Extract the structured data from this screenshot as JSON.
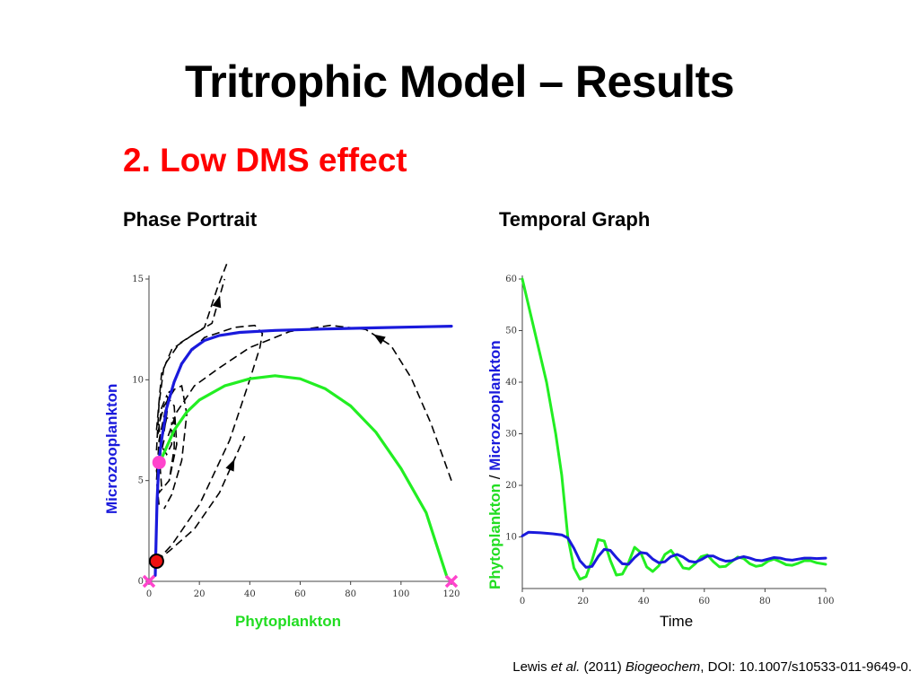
{
  "title": "Tritrophic Model – Results",
  "subtitle": "2. Low DMS effect",
  "panels": {
    "phase_label": "Phase Portrait",
    "temporal_label": "Temporal Graph"
  },
  "citation": {
    "author": "Lewis",
    "etal": "et al.",
    "year": "(2011)",
    "journal": "Biogeochem",
    "doi": ", DOI: 10.1007/s10533-011-9649-0."
  },
  "colors": {
    "microzoo": "#1a1adc",
    "phyto": "#22ee22",
    "trajectory": "#000000",
    "marker_pink": "#ff44cc",
    "marker_red": "#ee1111"
  },
  "chart_data": [
    {
      "type": "line",
      "name": "phase-portrait",
      "xlabel": "Phytoplankton",
      "ylabel": "Microzooplankton",
      "xlim": [
        0,
        120
      ],
      "ylim": [
        0,
        15
      ],
      "xticks": [
        0,
        20,
        40,
        60,
        80,
        100,
        120
      ],
      "yticks": [
        0,
        5,
        10,
        15
      ],
      "series": [
        {
          "role": "microzooplankton-nullcline",
          "color": "#1a1adc",
          "points": [
            [
              2.5,
              0.3
            ],
            [
              2.8,
              2
            ],
            [
              3.2,
              4
            ],
            [
              4,
              6
            ],
            [
              5,
              7
            ],
            [
              7,
              8.6
            ],
            [
              10,
              9.9
            ],
            [
              13,
              10.8
            ],
            [
              17,
              11.5
            ],
            [
              22,
              11.95
            ],
            [
              28,
              12.2
            ],
            [
              36,
              12.35
            ],
            [
              50,
              12.45
            ],
            [
              70,
              12.52
            ],
            [
              90,
              12.58
            ],
            [
              110,
              12.63
            ],
            [
              120,
              12.66
            ]
          ]
        },
        {
          "role": "phytoplankton-nullcline",
          "color": "#22ee22",
          "points": [
            [
              5,
              6.1
            ],
            [
              10,
              7.5
            ],
            [
              15,
              8.4
            ],
            [
              20,
              9.0
            ],
            [
              30,
              9.7
            ],
            [
              40,
              10.05
            ],
            [
              50,
              10.2
            ],
            [
              60,
              10.05
            ],
            [
              70,
              9.55
            ],
            [
              80,
              8.7
            ],
            [
              90,
              7.4
            ],
            [
              100,
              5.6
            ],
            [
              110,
              3.4
            ],
            [
              118,
              0.3
            ]
          ]
        }
      ],
      "trajectories": [
        {
          "points": [
            [
              3,
              1.0
            ],
            [
              8,
              1.5
            ],
            [
              18,
              2.6
            ],
            [
              28,
              4.4
            ],
            [
              38,
              7.2
            ]
          ],
          "arrow_at": 3
        },
        {
          "points": [
            [
              3,
              1.0
            ],
            [
              9,
              1.8
            ],
            [
              20,
              3.8
            ],
            [
              32,
              7.0
            ],
            [
              40,
              10.0
            ],
            [
              44,
              11.6
            ],
            [
              45,
              12.3
            ],
            [
              42,
              12.7
            ],
            [
              34,
              12.6
            ],
            [
              22,
              12.1
            ],
            [
              13,
              10.9
            ],
            [
              8,
              9.1
            ],
            [
              6,
              7.4
            ]
          ],
          "arrow_at": -1
        },
        {
          "points": [
            [
              120,
              5.0
            ],
            [
              112,
              7.8
            ],
            [
              104,
              10.1
            ],
            [
              96,
              11.7
            ],
            [
              86,
              12.5
            ],
            [
              72,
              12.7
            ],
            [
              56,
              12.4
            ],
            [
              40,
              11.6
            ],
            [
              28,
              10.6
            ],
            [
              18,
              9.7
            ],
            [
              11,
              8.4
            ],
            [
              7,
              7.0
            ]
          ],
          "arrow_at": 3
        },
        {
          "points": [
            [
              6,
              7.0
            ],
            [
              3,
              5.5
            ],
            [
              4,
              4.4
            ],
            [
              8,
              5.0
            ],
            [
              11,
              6.8
            ],
            [
              10,
              8.7
            ],
            [
              7,
              9.2
            ],
            [
              5,
              8.6
            ],
            [
              3.5,
              7.2
            ]
          ],
          "arrow_at": -1
        },
        {
          "points": [
            [
              4,
              3.8
            ],
            [
              3,
              5.0
            ],
            [
              4,
              7.0
            ],
            [
              8,
              9.4
            ],
            [
              13,
              9.7
            ],
            [
              15,
              8.3
            ],
            [
              13,
              6.0
            ],
            [
              9,
              4.3
            ],
            [
              6,
              3.6
            ]
          ],
          "arrow_at": -1
        },
        {
          "points": [
            [
              5,
              4.7
            ],
            [
              4,
              6.4
            ],
            [
              7,
              8.1
            ],
            [
              10,
              8.1
            ],
            [
              10,
              6.6
            ],
            [
              8,
              5.0
            ]
          ],
          "arrow_at": -1
        },
        {
          "points": [
            [
              10,
              9.5
            ],
            [
              6,
              8.7
            ],
            [
              4,
              7.8
            ],
            [
              4.5,
              6.8
            ],
            [
              7,
              6.3
            ],
            [
              9,
              6.8
            ],
            [
              9,
              7.9
            ]
          ],
          "arrow_at": -1
        },
        {
          "points": [
            [
              3,
              7.5
            ],
            [
              5,
              10.3
            ],
            [
              9,
              11.5
            ],
            [
              17,
              12.2
            ],
            [
              25,
              12.8
            ],
            [
              30,
              15.0
            ]
          ],
          "arrow_at": 4
        },
        {
          "points": [
            [
              3,
              6.5
            ],
            [
              4,
              8.8
            ],
            [
              6,
              10.7
            ],
            [
              12,
              11.8
            ],
            [
              22,
              12.6
            ],
            [
              27,
              14.5
            ],
            [
              31,
              15.8
            ]
          ],
          "arrow_at": -1
        }
      ],
      "markers": [
        {
          "x": 0,
          "y": 0,
          "shape": "x",
          "color": "#ff44cc"
        },
        {
          "x": 120,
          "y": 0,
          "shape": "x",
          "color": "#ff44cc"
        },
        {
          "x": 4,
          "y": 5.9,
          "shape": "dot",
          "color": "#ff44cc"
        },
        {
          "x": 3,
          "y": 1.0,
          "shape": "dot",
          "color": "#ee1111"
        }
      ]
    },
    {
      "type": "line",
      "name": "temporal-graph",
      "xlabel": "Time",
      "ylabel_parts": [
        "Phytoplankton",
        " / ",
        "Microzooplankton"
      ],
      "xlim": [
        0,
        100
      ],
      "ylim": [
        0,
        60
      ],
      "xticks": [
        0,
        20,
        40,
        60,
        80,
        100
      ],
      "yticks": [
        10,
        20,
        30,
        40,
        50,
        60
      ],
      "series": [
        {
          "role": "phytoplankton",
          "color": "#22ee22",
          "points": [
            [
              0,
              60
            ],
            [
              4,
              50
            ],
            [
              8,
              40
            ],
            [
              11,
              30
            ],
            [
              13,
              22
            ],
            [
              15,
              10
            ],
            [
              17,
              4
            ],
            [
              19,
              1.8
            ],
            [
              21,
              2.3
            ],
            [
              23,
              5.5
            ],
            [
              25,
              9.5
            ],
            [
              27,
              9.2
            ],
            [
              29,
              5.5
            ],
            [
              31,
              2.6
            ],
            [
              33,
              2.8
            ],
            [
              35,
              5
            ],
            [
              37,
              8
            ],
            [
              39,
              7
            ],
            [
              41,
              4.2
            ],
            [
              43,
              3.3
            ],
            [
              45,
              4.4
            ],
            [
              47,
              6.6
            ],
            [
              49,
              7.4
            ],
            [
              51,
              5.8
            ],
            [
              53,
              4.0
            ],
            [
              55,
              3.8
            ],
            [
              57,
              4.8
            ],
            [
              59,
              6.2
            ],
            [
              61,
              6.5
            ],
            [
              63,
              5.2
            ],
            [
              65,
              4.2
            ],
            [
              67,
              4.3
            ],
            [
              69,
              5.2
            ],
            [
              71,
              6.1
            ],
            [
              73,
              5.8
            ],
            [
              75,
              4.8
            ],
            [
              77,
              4.3
            ],
            [
              79,
              4.5
            ],
            [
              81,
              5.3
            ],
            [
              83,
              5.7
            ],
            [
              85,
              5.2
            ],
            [
              87,
              4.6
            ],
            [
              89,
              4.5
            ],
            [
              91,
              4.9
            ],
            [
              93,
              5.4
            ],
            [
              95,
              5.4
            ],
            [
              97,
              5.0
            ],
            [
              100,
              4.7
            ]
          ]
        },
        {
          "role": "microzooplankton",
          "color": "#1a1adc",
          "points": [
            [
              0,
              10.2
            ],
            [
              2,
              10.9
            ],
            [
              6,
              10.8
            ],
            [
              10,
              10.6
            ],
            [
              13,
              10.4
            ],
            [
              15,
              9.8
            ],
            [
              17,
              7.8
            ],
            [
              19,
              5.4
            ],
            [
              21,
              4.1
            ],
            [
              23,
              4.3
            ],
            [
              25,
              6.2
            ],
            [
              27,
              7.6
            ],
            [
              29,
              7.4
            ],
            [
              31,
              6.0
            ],
            [
              33,
              4.8
            ],
            [
              35,
              4.7
            ],
            [
              37,
              6.0
            ],
            [
              39,
              7.0
            ],
            [
              41,
              6.8
            ],
            [
              43,
              5.7
            ],
            [
              45,
              5.0
            ],
            [
              47,
              5.2
            ],
            [
              49,
              6.2
            ],
            [
              51,
              6.6
            ],
            [
              53,
              6.1
            ],
            [
              55,
              5.3
            ],
            [
              57,
              5.1
            ],
            [
              59,
              5.6
            ],
            [
              61,
              6.3
            ],
            [
              63,
              6.3
            ],
            [
              65,
              5.7
            ],
            [
              67,
              5.3
            ],
            [
              69,
              5.4
            ],
            [
              71,
              5.9
            ],
            [
              73,
              6.2
            ],
            [
              75,
              5.9
            ],
            [
              77,
              5.5
            ],
            [
              79,
              5.4
            ],
            [
              81,
              5.7
            ],
            [
              83,
              6.0
            ],
            [
              85,
              5.9
            ],
            [
              87,
              5.6
            ],
            [
              89,
              5.5
            ],
            [
              91,
              5.7
            ],
            [
              93,
              5.9
            ],
            [
              95,
              5.9
            ],
            [
              97,
              5.8
            ],
            [
              100,
              5.9
            ]
          ]
        }
      ]
    }
  ]
}
